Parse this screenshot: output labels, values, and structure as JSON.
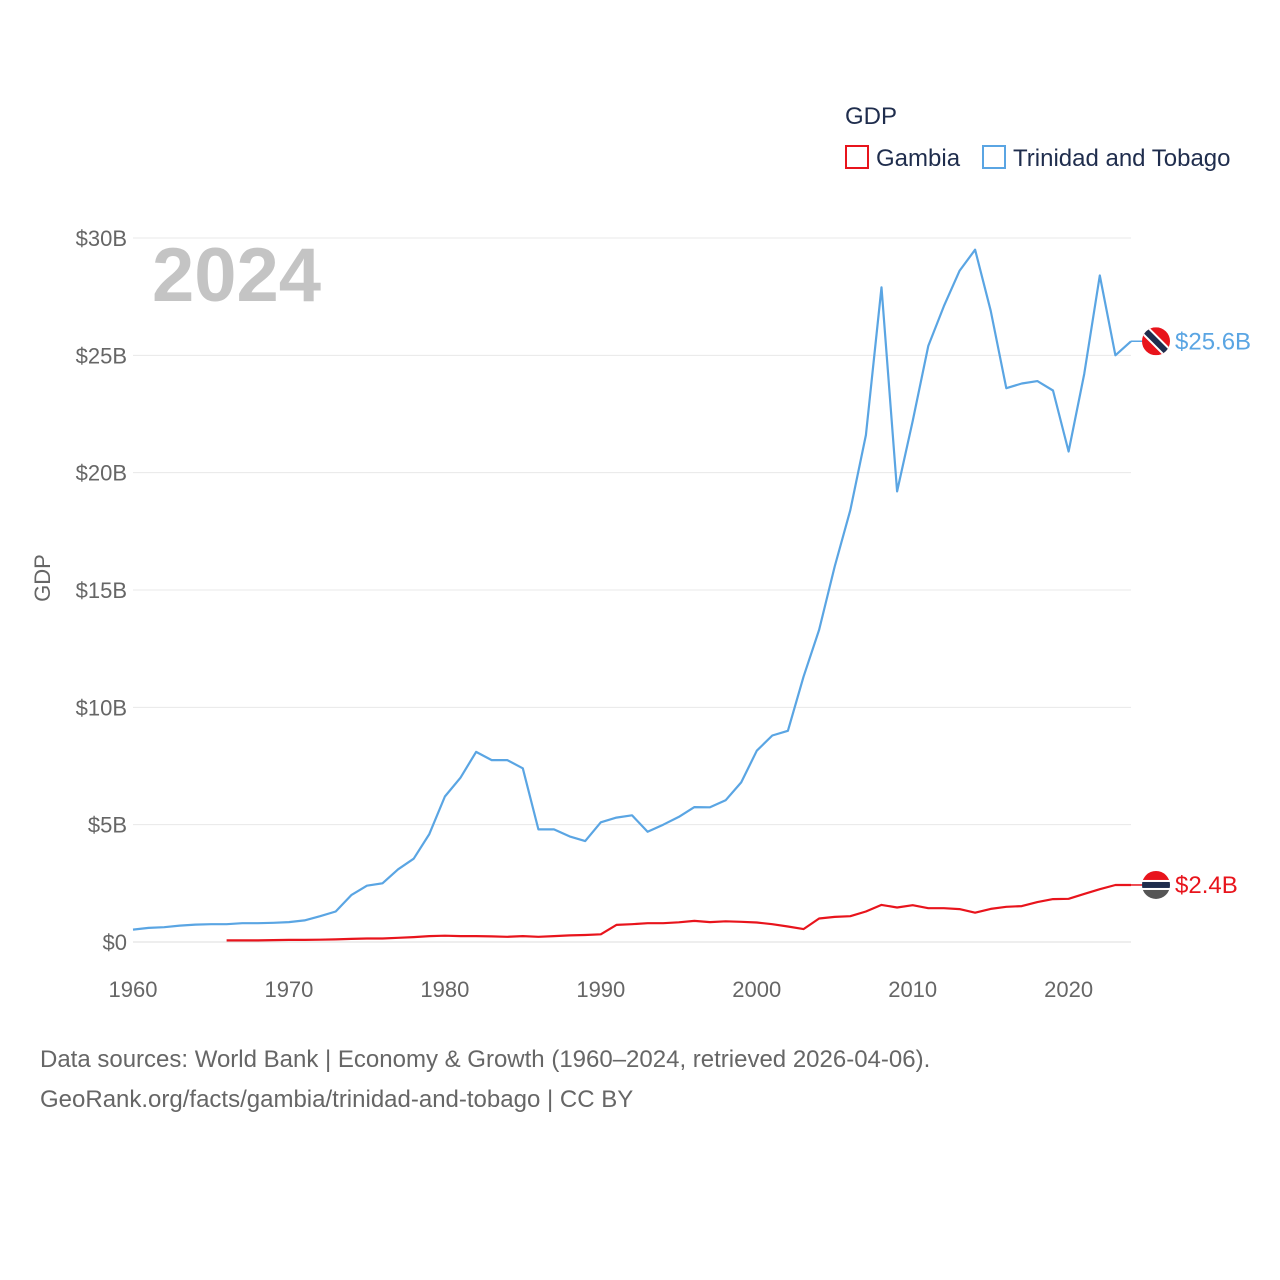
{
  "chart_data": {
    "type": "line",
    "year_label": "2024",
    "legend_title": "GDP",
    "ylabel": "GDP",
    "xlim": [
      1960,
      2024
    ],
    "ylim": [
      0,
      30
    ],
    "x_ticks": [
      1960,
      1970,
      1980,
      1990,
      2000,
      2010,
      2020
    ],
    "x_tick_labels": [
      "1960",
      "1970",
      "1980",
      "1990",
      "2000",
      "2010",
      "2020"
    ],
    "y_ticks": [
      0,
      5,
      10,
      15,
      20,
      25,
      30
    ],
    "y_tick_labels": [
      "$0",
      "$5B",
      "$10B",
      "$15B",
      "$20B",
      "$25B",
      "$30B"
    ],
    "units": "billions USD",
    "series": [
      {
        "name": "Gambia",
        "color": "#e8141c",
        "end_label": "$2.4B",
        "start_year": 1966,
        "values": [
          0.07,
          0.07,
          0.07,
          0.08,
          0.09,
          0.09,
          0.1,
          0.11,
          0.13,
          0.15,
          0.15,
          0.18,
          0.21,
          0.25,
          0.27,
          0.25,
          0.25,
          0.24,
          0.22,
          0.25,
          0.22,
          0.25,
          0.28,
          0.3,
          0.33,
          0.73,
          0.76,
          0.8,
          0.8,
          0.84,
          0.9,
          0.85,
          0.88,
          0.86,
          0.83,
          0.76,
          0.66,
          0.55,
          1.0,
          1.07,
          1.1,
          1.3,
          1.58,
          1.47,
          1.57,
          1.44,
          1.44,
          1.4,
          1.25,
          1.41,
          1.5,
          1.53,
          1.7,
          1.83,
          1.84,
          2.05,
          2.25,
          2.43,
          2.43
        ]
      },
      {
        "name": "Trinidad and Tobago",
        "color": "#5aa5e3",
        "end_label": "$25.6B",
        "start_year": 1960,
        "values": [
          0.53,
          0.6,
          0.63,
          0.7,
          0.74,
          0.76,
          0.76,
          0.8,
          0.8,
          0.82,
          0.85,
          0.92,
          1.1,
          1.3,
          2.0,
          2.4,
          2.5,
          3.1,
          3.55,
          4.6,
          6.2,
          7.0,
          8.1,
          7.75,
          7.75,
          7.4,
          4.8,
          4.8,
          4.5,
          4.3,
          5.1,
          5.3,
          5.4,
          4.7,
          5.0,
          5.33,
          5.75,
          5.74,
          6.04,
          6.8,
          8.15,
          8.8,
          9.0,
          11.3,
          13.3,
          16.0,
          18.4,
          21.6,
          27.9,
          19.2,
          22.2,
          25.4,
          27.1,
          28.6,
          29.5,
          26.9,
          23.6,
          23.8,
          23.9,
          23.5,
          20.9,
          24.2,
          28.4,
          25.0,
          25.6
        ]
      }
    ]
  },
  "footer": {
    "line1": "Data sources: World Bank | Economy & Growth (1960–2024, retrieved 2026-04-06).",
    "line2": "GeoRank.org/facts/gambia/trinidad-and-tobago | CC BY"
  }
}
